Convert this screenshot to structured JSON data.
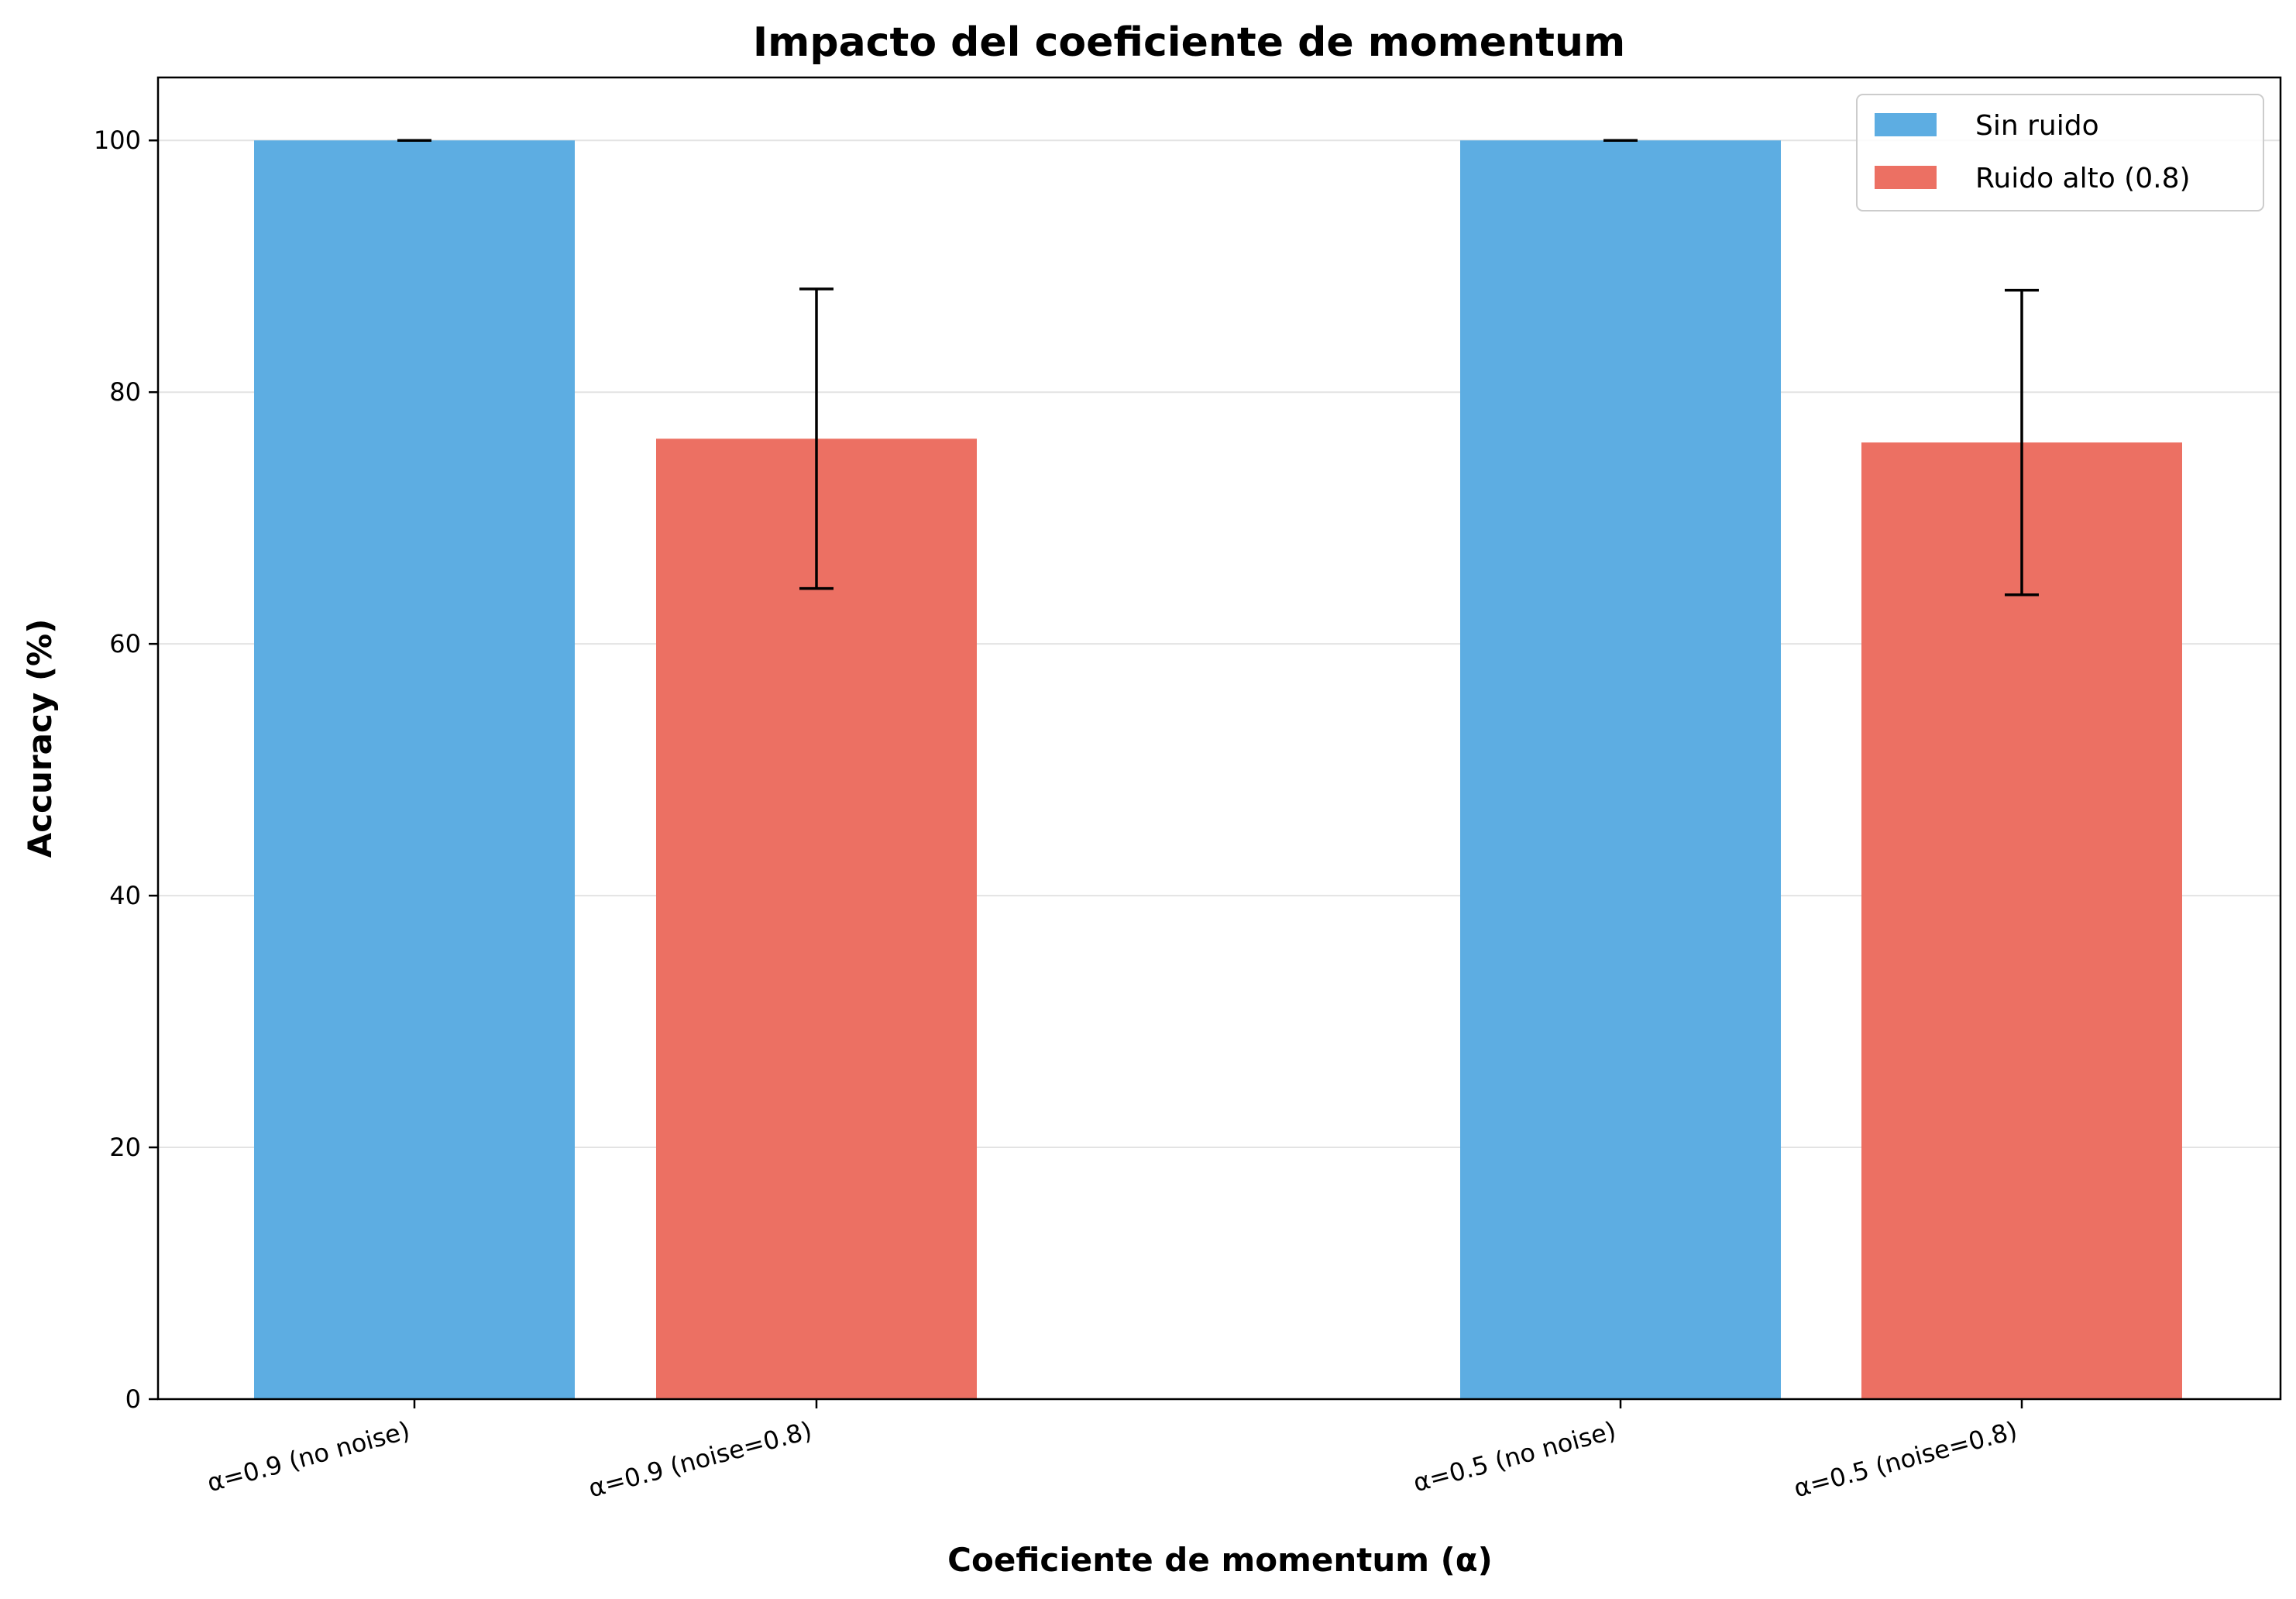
{
  "chart_data": {
    "type": "bar",
    "title": "Impacto del coeficiente de momentum",
    "xlabel": "Coeficiente de momentum (α)",
    "ylabel": "Accuracy (%)",
    "ylim": [
      0,
      105
    ],
    "yticks": [
      0,
      20,
      40,
      60,
      80,
      100
    ],
    "grid": "y",
    "legend_position": "top-right",
    "categories": [
      "α=0.9 (no noise)",
      "α=0.9 (noise=0.8)",
      "α=0.5 (no noise)",
      "α=0.5 (noise=0.8)"
    ],
    "bars": [
      {
        "category": "α=0.9 (no noise)",
        "series": "Sin ruido",
        "value": 100.0,
        "error": 0.0
      },
      {
        "category": "α=0.9 (noise=0.8)",
        "series": "Ruido alto (0.8)",
        "value": 76.3,
        "error": 11.9
      },
      {
        "category": "α=0.5 (no noise)",
        "series": "Sin ruido",
        "value": 100.0,
        "error": 0.0
      },
      {
        "category": "α=0.5 (noise=0.8)",
        "series": "Ruido alto (0.8)",
        "value": 76.0,
        "error": 12.1
      }
    ],
    "series": [
      {
        "name": "Sin ruido",
        "color": "#5DADE2"
      },
      {
        "name": "Ruido alto (0.8)",
        "color": "#EC7063"
      }
    ]
  }
}
